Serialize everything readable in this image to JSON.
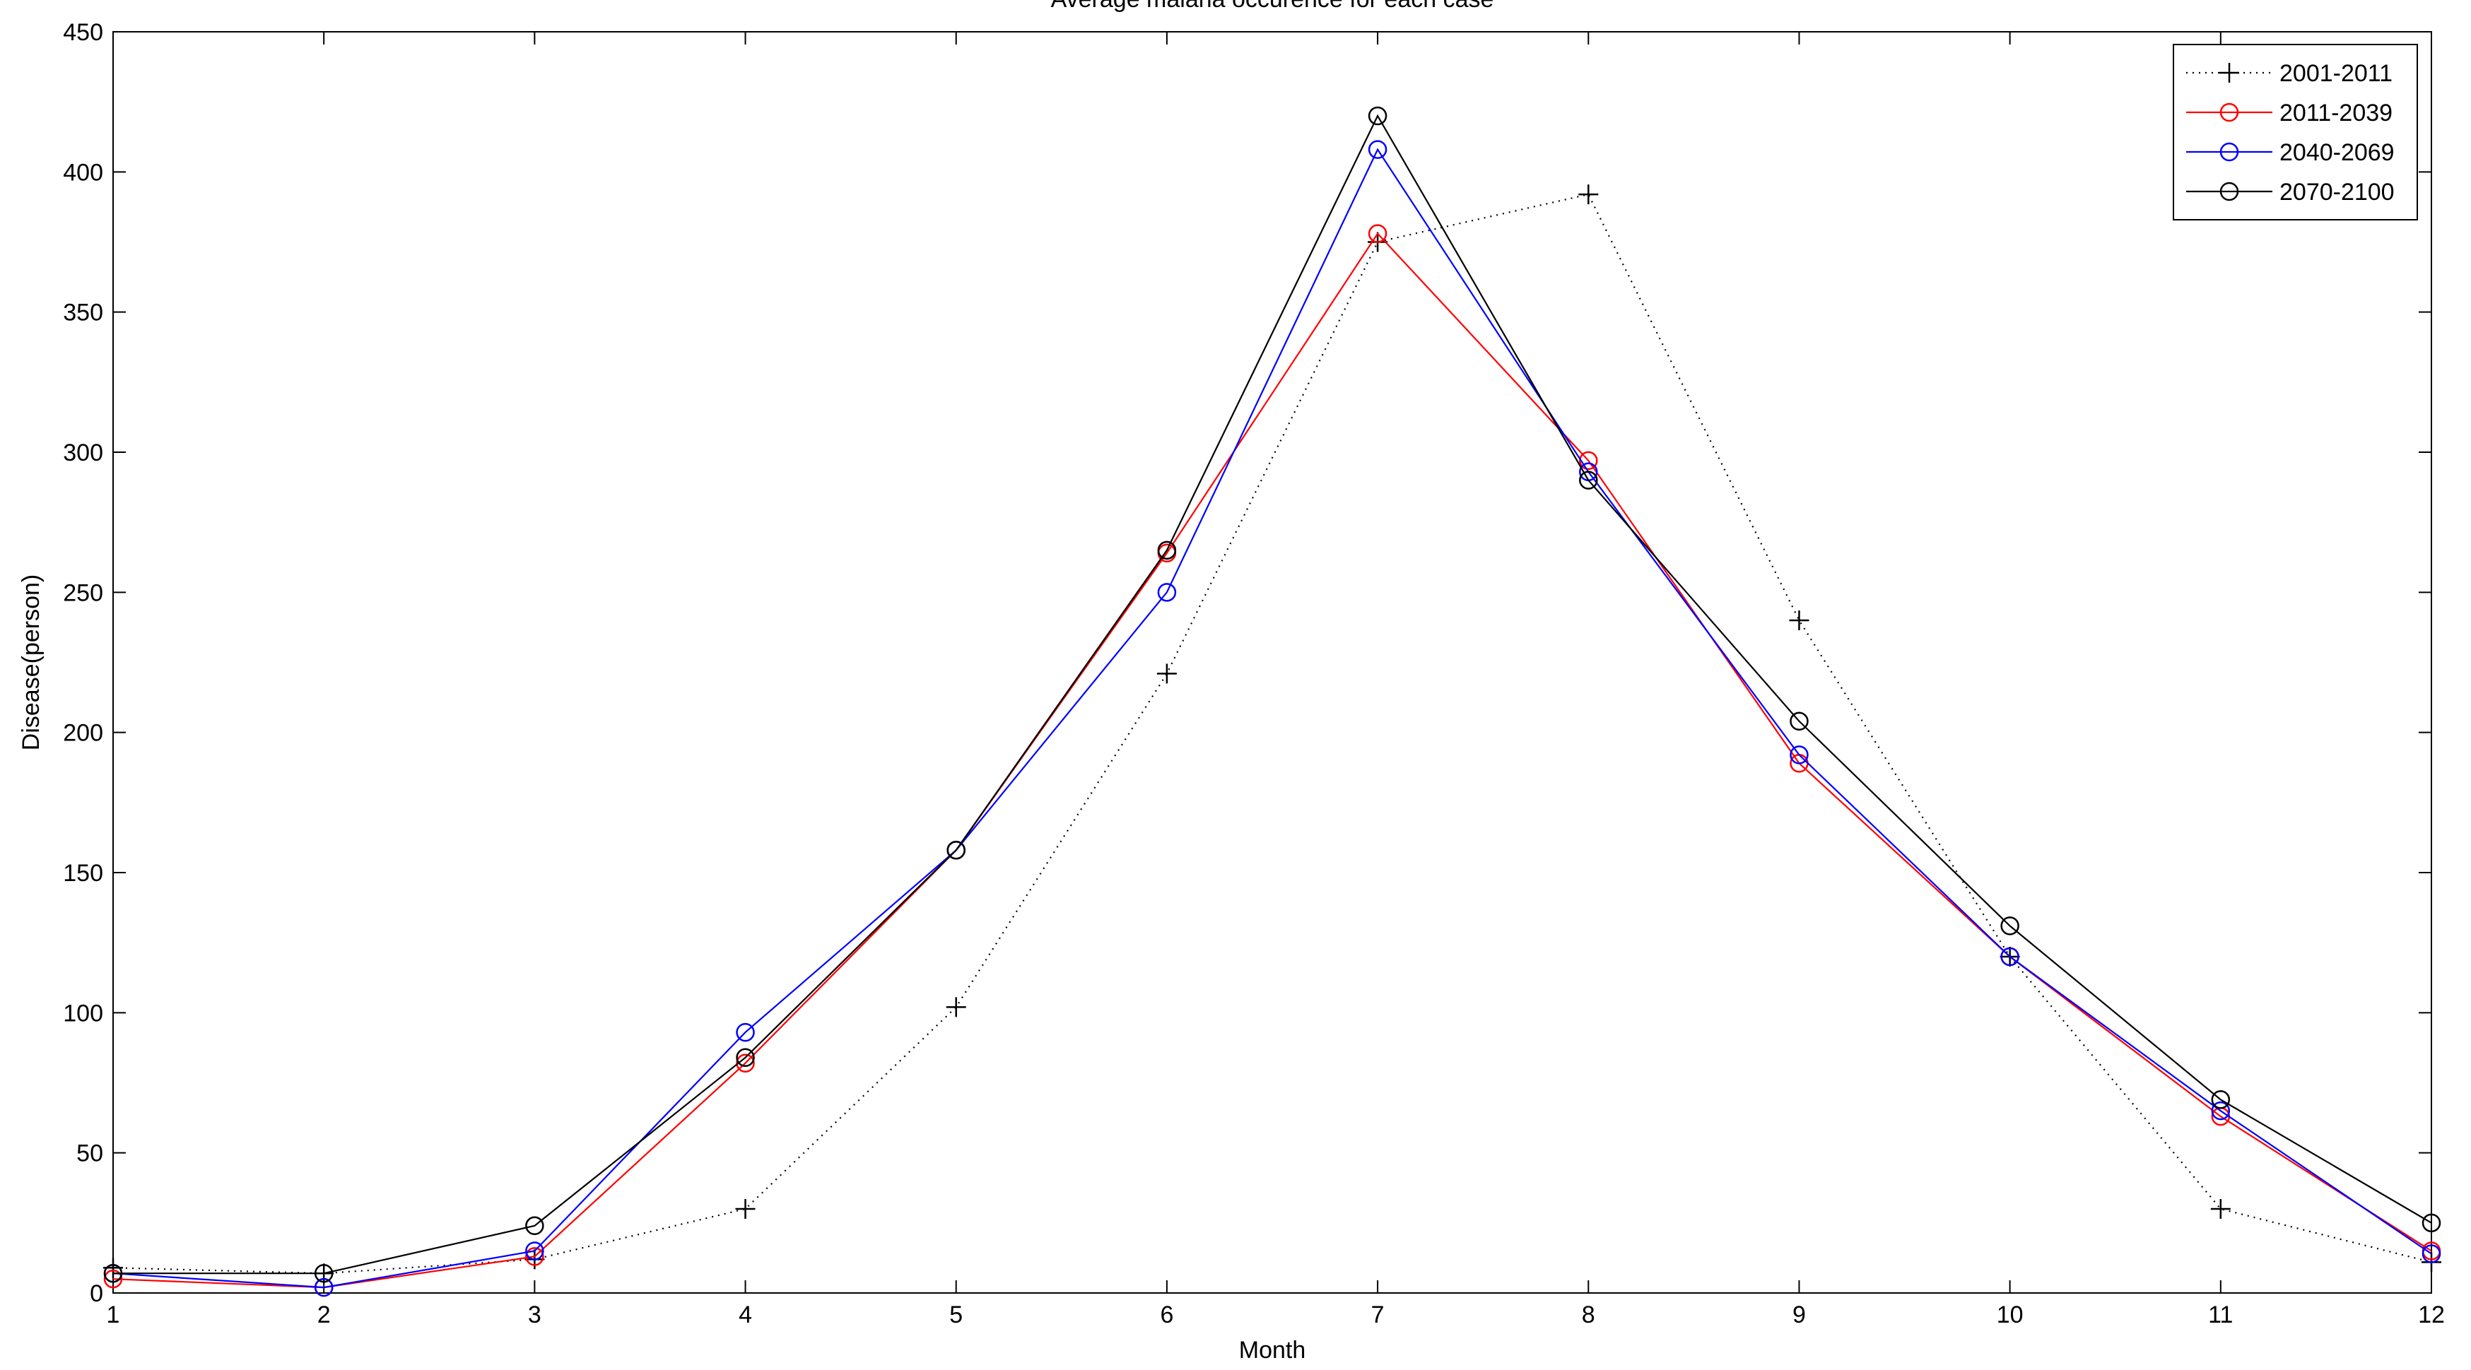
{
  "chart_data": {
    "type": "line",
    "title": "Average malaria occurence for each case",
    "xlabel": "Month",
    "ylabel": "Disease(person)",
    "xlim": [
      1,
      12
    ],
    "ylim": [
      0,
      450
    ],
    "xticks": [
      1,
      2,
      3,
      4,
      5,
      6,
      7,
      8,
      9,
      10,
      11,
      12
    ],
    "yticks": [
      0,
      50,
      100,
      150,
      200,
      250,
      300,
      350,
      400,
      450
    ],
    "grid": false,
    "legend_position": "top-right",
    "x": [
      1,
      2,
      3,
      4,
      5,
      6,
      7,
      8,
      9,
      10,
      11,
      12
    ],
    "series": [
      {
        "name": "2001-2011",
        "color": "#000000",
        "line_style": "dotted",
        "marker": "plus",
        "values": [
          9,
          7,
          12,
          30,
          102,
          221,
          375,
          392,
          240,
          120,
          30,
          11
        ]
      },
      {
        "name": "2011-2039",
        "color": "#ff0000",
        "line_style": "solid",
        "marker": "circle",
        "values": [
          5,
          2,
          13,
          82,
          158,
          264,
          378,
          297,
          189,
          120,
          63,
          15
        ]
      },
      {
        "name": "2040-2069",
        "color": "#0000ff",
        "line_style": "solid",
        "marker": "circle",
        "values": [
          7,
          2,
          15,
          93,
          158,
          250,
          408,
          293,
          192,
          120,
          65,
          14
        ]
      },
      {
        "name": "2070-2100",
        "color": "#000000",
        "line_style": "solid",
        "marker": "circle",
        "values": [
          7,
          7,
          24,
          84,
          158,
          265,
          420,
          290,
          204,
          131,
          69,
          25
        ]
      }
    ]
  }
}
